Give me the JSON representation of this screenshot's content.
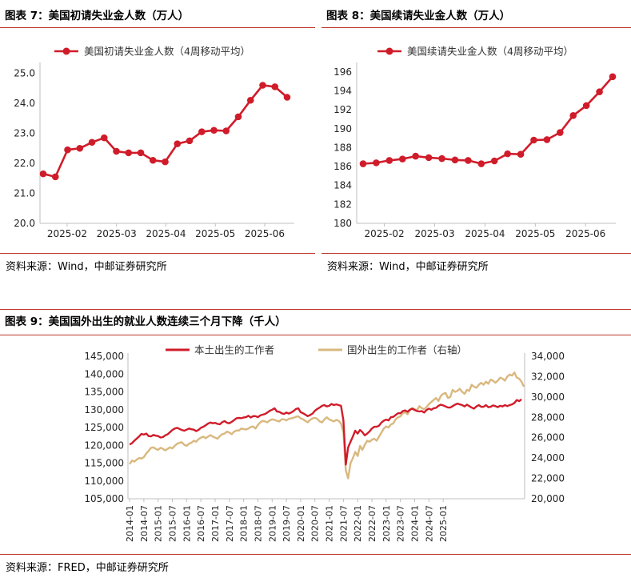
{
  "panels": {
    "p7": {
      "title": "图表 7：美国初请失业金人数（万人）",
      "source": "资料来源：Wind，中邮证券研究所"
    },
    "p8": {
      "title": "图表 8：美国续请失业金人数（万人）",
      "source": "资料来源：Wind，中邮证券研究所"
    },
    "p9": {
      "title": "图表 9：美国国外出生的就业人数连续三个月下降（千人）",
      "source": "资料来源：FRED，中邮证券研究所"
    }
  },
  "colors": {
    "red": "#d01c2a",
    "tan": "#d9b87f",
    "rule": "#c0392b",
    "axis": "#bfbfbf"
  },
  "chart_data": [
    {
      "id": "c7",
      "type": "line",
      "title": "",
      "series": [
        {
          "name": "美国初请失业金人数（4周移动平均）",
          "values": [
            21.65,
            21.55,
            22.45,
            22.5,
            22.7,
            22.85,
            22.4,
            22.35,
            22.35,
            22.1,
            22.05,
            22.65,
            22.75,
            23.05,
            23.1,
            23.08,
            23.55,
            24.1,
            24.6,
            24.55,
            24.2
          ]
        }
      ],
      "x_ticks": [
        "2025-02",
        "2025-03",
        "2025-04",
        "2025-05",
        "2025-06"
      ],
      "y_ticks": [
        "20.0",
        "21.0",
        "22.0",
        "23.0",
        "24.0",
        "25.0"
      ],
      "ylim": [
        20,
        25.2
      ],
      "markers": true,
      "legend": "top"
    },
    {
      "id": "c8",
      "type": "line",
      "title": "",
      "series": [
        {
          "name": "美国续请失业金人数（4周移动平均）",
          "values": [
            186.3,
            186.4,
            186.65,
            186.8,
            187.1,
            186.95,
            186.85,
            186.7,
            186.65,
            186.3,
            186.6,
            187.35,
            187.3,
            188.8,
            188.85,
            189.6,
            191.4,
            192.45,
            193.9,
            195.5
          ]
        }
      ],
      "x_ticks": [
        "2025-02",
        "2025-03",
        "2025-04",
        "2025-05",
        "2025-06"
      ],
      "y_ticks": [
        "180",
        "182",
        "184",
        "186",
        "188",
        "190",
        "192",
        "194",
        "196"
      ],
      "ylim": [
        180,
        196.5
      ],
      "markers": true,
      "legend": "top"
    },
    {
      "id": "c9",
      "type": "line",
      "title": "",
      "series": [
        {
          "name": "本土出生的工作者",
          "axis": "left",
          "values": [
            120205,
            120600,
            121300,
            121900,
            122500,
            123200,
            123000,
            123300,
            122600,
            122500,
            122900,
            122700,
            122600,
            122200,
            122300,
            122800,
            123100,
            123700,
            124300,
            124700,
            124900,
            124600,
            124300,
            124100,
            124400,
            124700,
            124500,
            124400,
            124000,
            124300,
            124900,
            125200,
            125600,
            126100,
            126400,
            126200,
            126300,
            126000,
            125900,
            126500,
            126800,
            126300,
            126200,
            126600,
            127100,
            127600,
            127700,
            127600,
            127800,
            127900,
            128300,
            127800,
            128200,
            128200,
            127900,
            128400,
            128600,
            128800,
            129200,
            129700,
            130000,
            130400,
            129500,
            129400,
            129000,
            128800,
            129200,
            128900,
            129200,
            129600,
            130200,
            130400,
            129300,
            129000,
            128600,
            128200,
            128500,
            128900,
            129700,
            130200,
            130600,
            131100,
            131300,
            130900,
            131100,
            131600,
            131300,
            131500,
            131300,
            131100,
            127000,
            114600,
            119400,
            121000,
            122500,
            124100,
            123300,
            124300,
            123700,
            122800,
            123300,
            123900,
            124700,
            125200,
            125200,
            125500,
            126400,
            126900,
            127200,
            127000,
            127900,
            128000,
            128500,
            129000,
            129000,
            129600,
            129800,
            129400,
            130000,
            130300,
            129900,
            129600,
            129500,
            129600,
            129200,
            129900,
            130300,
            130000,
            130400,
            130500,
            131100,
            131400,
            131200,
            130900,
            130600,
            130600,
            131000,
            131400,
            131700,
            131500,
            131300,
            130900,
            131400,
            131000,
            130600,
            130300,
            130900,
            131300,
            130800,
            130800,
            131300,
            130700,
            130800,
            131200,
            131000,
            130700,
            131100,
            130900,
            131300,
            131000,
            131300,
            131500,
            131900,
            132700,
            132400,
            132900
          ]
        },
        {
          "name": "国外出生的工作者（右轴）",
          "axis": "right",
          "values": [
            23400,
            23750,
            23650,
            23850,
            24000,
            23950,
            24100,
            24450,
            24700,
            25000,
            25050,
            24900,
            24800,
            25000,
            24900,
            24750,
            24900,
            25050,
            24950,
            25200,
            25400,
            25500,
            25550,
            25300,
            25200,
            25400,
            25500,
            25700,
            25600,
            25850,
            26000,
            26100,
            25950,
            26100,
            26250,
            26100,
            26000,
            25900,
            26150,
            26350,
            26400,
            26600,
            26500,
            26350,
            26600,
            26700,
            26700,
            26900,
            26850,
            26800,
            26900,
            27050,
            27100,
            26900,
            27250,
            27500,
            27650,
            27600,
            27500,
            27700,
            27800,
            27750,
            27650,
            27600,
            27800,
            27800,
            27700,
            27850,
            27900,
            27950,
            28050,
            28100,
            27900,
            27800,
            27650,
            27500,
            27750,
            27900,
            27950,
            27850,
            27600,
            27500,
            27800,
            28000,
            27800,
            27700,
            27600,
            27750,
            27650,
            27400,
            26500,
            22800,
            22000,
            23500,
            24000,
            24600,
            24200,
            25200,
            24800,
            25300,
            25700,
            25600,
            25800,
            25900,
            25700,
            26100,
            26500,
            26900,
            27100,
            27000,
            27300,
            27400,
            27800,
            28000,
            28100,
            28400,
            28500,
            28300,
            28700,
            28900,
            28800,
            28700,
            29100,
            28900,
            28800,
            29000,
            29300,
            29500,
            29700,
            29900,
            29600,
            30100,
            30300,
            30400,
            29900,
            30000,
            30700,
            30500,
            30600,
            30800,
            30500,
            30300,
            30700,
            30600,
            31200,
            31000,
            30900,
            31200,
            31400,
            31200,
            31500,
            31300,
            31700,
            31600,
            31400,
            31600,
            31900,
            31800,
            31600,
            32000,
            32200,
            32100,
            32400,
            31900,
            31800,
            31500,
            31000
          ]
        }
      ],
      "x_ticks": [
        "2014-01",
        "2014-07",
        "2015-01",
        "2015-07",
        "2016-01",
        "2016-07",
        "2017-01",
        "2017-07",
        "2018-01",
        "2018-07",
        "2019-01",
        "2019-07",
        "2020-01",
        "2020-07",
        "2021-01",
        "2021-07",
        "2022-01",
        "2022-07",
        "2023-01",
        "2023-07",
        "2024-01",
        "2024-07",
        "2025-01"
      ],
      "y_left_ticks": [
        "105,000",
        "110,000",
        "115,000",
        "120,000",
        "125,000",
        "130,000",
        "135,000",
        "140,000",
        "145,000"
      ],
      "y_right_ticks": [
        "20,000",
        "22,000",
        "24,000",
        "26,000",
        "28,000",
        "30,000",
        "32,000",
        "34,000"
      ],
      "ylim_left": [
        105000,
        145000
      ],
      "ylim_right": [
        20000,
        34000
      ],
      "legend": "top"
    }
  ]
}
